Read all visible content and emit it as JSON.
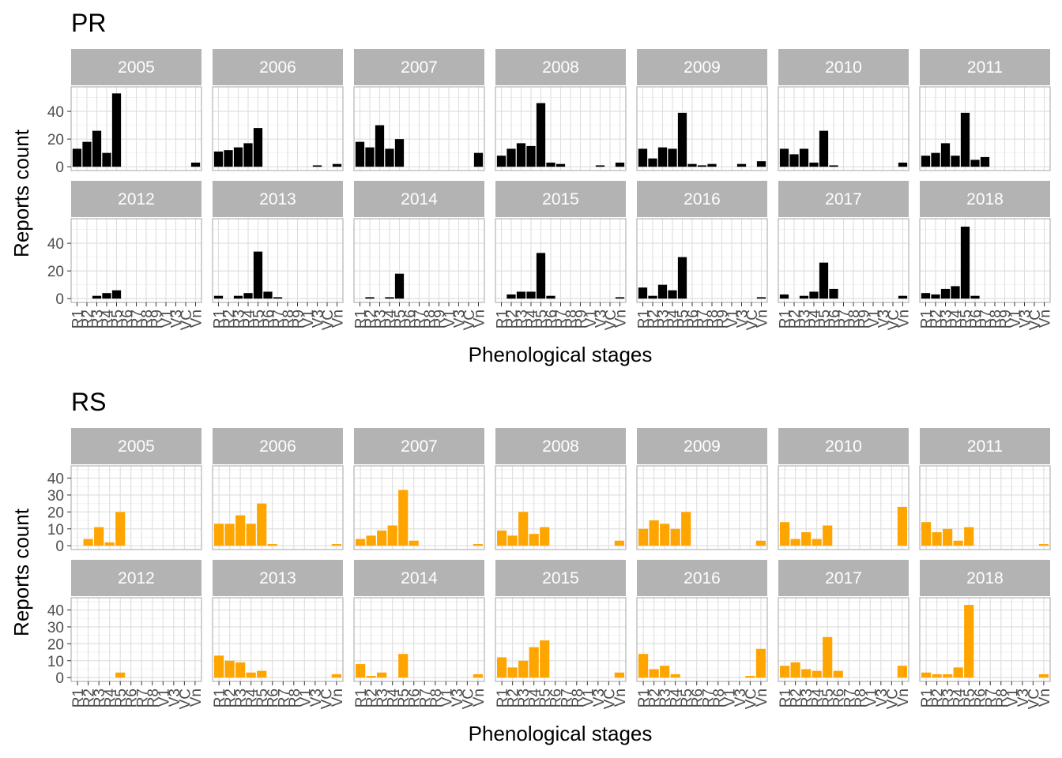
{
  "chart_data": [
    {
      "type": "bar",
      "title": "PR",
      "xlabel": "Phenological stages",
      "ylabel": "Reports count",
      "color": "#000000",
      "ylim": [
        0,
        55
      ],
      "yticks": [
        0,
        20,
        40
      ],
      "categories": [
        "R1",
        "R2",
        "R3",
        "R4",
        "R5",
        "R6",
        "R7",
        "R8",
        "R9",
        "V1",
        "V3",
        "VC",
        "Vn"
      ],
      "panels": [
        {
          "name": "2005",
          "values": [
            13,
            18,
            26,
            10,
            53,
            0,
            0,
            0,
            0,
            0,
            0,
            0,
            3
          ]
        },
        {
          "name": "2006",
          "values": [
            11,
            12,
            14,
            17,
            28,
            0,
            0,
            0,
            0,
            0,
            1,
            0,
            2
          ]
        },
        {
          "name": "2007",
          "values": [
            18,
            14,
            30,
            13,
            20,
            0,
            0,
            0,
            0,
            0,
            0,
            0,
            10
          ]
        },
        {
          "name": "2008",
          "values": [
            8,
            13,
            17,
            15,
            46,
            3,
            2,
            0,
            0,
            0,
            1,
            0,
            3
          ]
        },
        {
          "name": "2009",
          "values": [
            13,
            6,
            14,
            13,
            39,
            2,
            1,
            2,
            0,
            0,
            2,
            0,
            4
          ]
        },
        {
          "name": "2010",
          "values": [
            13,
            9,
            13,
            3,
            26,
            1,
            0,
            0,
            0,
            0,
            0,
            0,
            3
          ]
        },
        {
          "name": "2011",
          "values": [
            8,
            10,
            17,
            8,
            39,
            5,
            7,
            0,
            0,
            0,
            0,
            0,
            0
          ]
        },
        {
          "name": "2012",
          "values": [
            0,
            0,
            2,
            4,
            6,
            0,
            0,
            0,
            0,
            0,
            0,
            0,
            0
          ]
        },
        {
          "name": "2013",
          "values": [
            2,
            0,
            2,
            4,
            34,
            5,
            1,
            0,
            0,
            0,
            0,
            0,
            0
          ]
        },
        {
          "name": "2014",
          "values": [
            0,
            1,
            0,
            1,
            18,
            0,
            0,
            0,
            0,
            0,
            0,
            0,
            0
          ]
        },
        {
          "name": "2015",
          "values": [
            0,
            3,
            5,
            5,
            33,
            2,
            0,
            0,
            0,
            0,
            0,
            0,
            1
          ]
        },
        {
          "name": "2016",
          "values": [
            8,
            2,
            10,
            6,
            30,
            0,
            0,
            0,
            0,
            0,
            0,
            0,
            1
          ]
        },
        {
          "name": "2017",
          "values": [
            3,
            0,
            2,
            5,
            26,
            7,
            0,
            0,
            0,
            0,
            0,
            0,
            2
          ]
        },
        {
          "name": "2018",
          "values": [
            4,
            3,
            7,
            9,
            52,
            2,
            0,
            0,
            0,
            0,
            0,
            0,
            0
          ]
        }
      ]
    },
    {
      "type": "bar",
      "title": "RS",
      "xlabel": "Phenological stages",
      "ylabel": "Reports count",
      "color": "#FFA500",
      "ylim": [
        0,
        45
      ],
      "yticks": [
        0,
        10,
        20,
        30,
        40
      ],
      "categories": [
        "R1",
        "R2",
        "R3",
        "R4",
        "R5",
        "R6",
        "R7",
        "R8",
        "V1",
        "V3",
        "VC",
        "Vn"
      ],
      "panels": [
        {
          "name": "2005",
          "values": [
            0,
            4,
            11,
            2,
            20,
            0,
            0,
            0,
            0,
            0,
            0,
            0
          ]
        },
        {
          "name": "2006",
          "values": [
            13,
            13,
            18,
            13,
            25,
            1,
            0,
            0,
            0,
            0,
            0,
            1
          ]
        },
        {
          "name": "2007",
          "values": [
            4,
            6,
            9,
            12,
            33,
            3,
            0,
            0,
            0,
            0,
            0,
            1
          ]
        },
        {
          "name": "2008",
          "values": [
            9,
            6,
            20,
            7,
            11,
            0,
            0,
            0,
            0,
            0,
            0,
            3
          ]
        },
        {
          "name": "2009",
          "values": [
            10,
            15,
            13,
            10,
            20,
            0,
            0,
            0,
            0,
            0,
            0,
            3
          ]
        },
        {
          "name": "2010",
          "values": [
            14,
            4,
            8,
            4,
            12,
            0,
            0,
            0,
            0,
            0,
            0,
            23
          ]
        },
        {
          "name": "2011",
          "values": [
            14,
            8,
            10,
            3,
            11,
            0,
            0,
            0,
            0,
            0,
            0,
            1
          ]
        },
        {
          "name": "2012",
          "values": [
            0,
            0,
            0,
            0,
            3,
            0,
            0,
            0,
            0,
            0,
            0,
            0
          ]
        },
        {
          "name": "2013",
          "values": [
            13,
            10,
            9,
            3,
            4,
            0,
            0,
            0,
            0,
            0,
            0,
            2
          ]
        },
        {
          "name": "2014",
          "values": [
            8,
            1,
            3,
            0,
            14,
            0,
            0,
            0,
            0,
            0,
            0,
            2
          ]
        },
        {
          "name": "2015",
          "values": [
            12,
            6,
            10,
            18,
            22,
            0,
            0,
            0,
            0,
            0,
            0,
            3
          ]
        },
        {
          "name": "2016",
          "values": [
            14,
            5,
            7,
            2,
            0,
            0,
            0,
            0,
            0,
            0,
            1,
            17
          ]
        },
        {
          "name": "2017",
          "values": [
            7,
            9,
            5,
            4,
            24,
            4,
            0,
            0,
            0,
            0,
            0,
            7
          ]
        },
        {
          "name": "2018",
          "values": [
            3,
            2,
            2,
            6,
            43,
            0,
            0,
            0,
            0,
            0,
            0,
            2
          ]
        }
      ]
    }
  ]
}
